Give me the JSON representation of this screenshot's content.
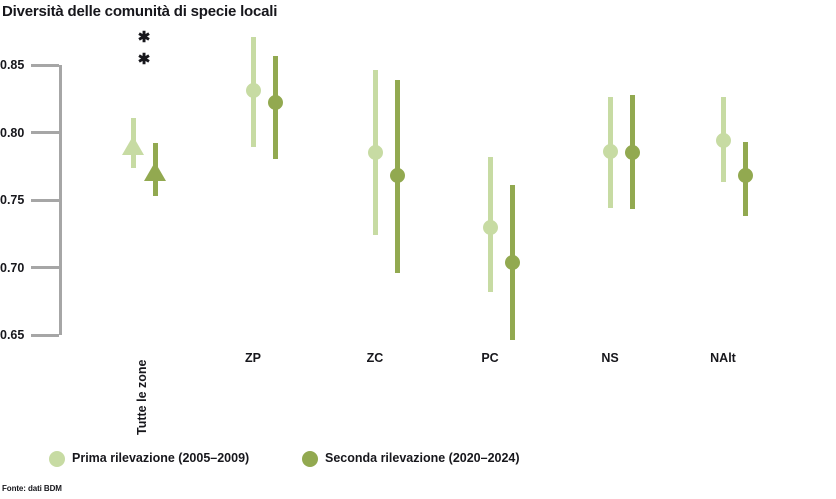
{
  "title": "Diversità delle comunità di specie locali",
  "footer": "Fonte: dati BDM",
  "colors": {
    "series1": "#c7dba3",
    "series2": "#92a950",
    "axis": "#a6a6a6",
    "text": "#17171c"
  },
  "legend": [
    {
      "label": "Prima rilevazione (2005–2009)",
      "color": "#c7dba3"
    },
    {
      "label": "Seconda rilevazione (2020–2024)",
      "color": "#92a950"
    }
  ],
  "significance": {
    "category": "Tutte le zone",
    "symbols": [
      "✱",
      "✱"
    ]
  },
  "chart_data": {
    "type": "scatter",
    "title": "Diversità delle comunità di specie locali",
    "xlabel": "",
    "ylabel": "",
    "ylim": [
      0.65,
      0.85
    ],
    "yticks": [
      0.85,
      0.8,
      0.75,
      0.7,
      0.65
    ],
    "grid": false,
    "legend_position": "bottom",
    "categories": [
      "Tutte le zone",
      "ZP",
      "ZC",
      "PC",
      "NS",
      "NAlt"
    ],
    "marker_by_category": [
      "triangle",
      "circle",
      "circle",
      "circle",
      "circle",
      "circle"
    ],
    "error_bars": "95% CI",
    "series": [
      {
        "name": "Prima rilevazione (2005–2009)",
        "values": [
          0.79,
          0.831,
          0.785,
          0.73,
          0.786,
          0.794
        ],
        "ci_low": [
          0.774,
          0.789,
          0.724,
          0.682,
          0.744,
          0.763
        ],
        "ci_high": [
          0.811,
          0.871,
          0.846,
          0.782,
          0.826,
          0.826
        ]
      },
      {
        "name": "Seconda rilevazione (2020–2024)",
        "values": [
          0.771,
          0.822,
          0.768,
          0.704,
          0.785,
          0.768
        ],
        "ci_low": [
          0.753,
          0.78,
          0.696,
          0.646,
          0.743,
          0.738
        ],
        "ci_high": [
          0.792,
          0.857,
          0.839,
          0.761,
          0.828,
          0.793
        ]
      }
    ],
    "annotations": [
      {
        "text": "✱✱",
        "category": "Tutte le zone",
        "meaning": "significance-marker"
      }
    ]
  }
}
